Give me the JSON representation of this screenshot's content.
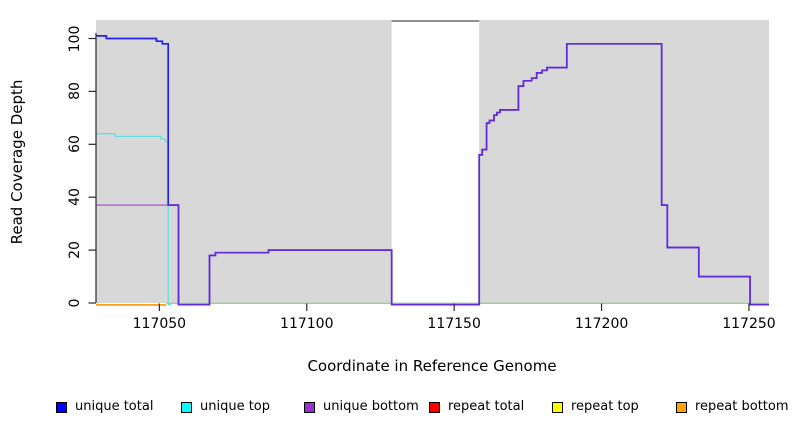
{
  "chart_data": {
    "type": "line",
    "subtype": "step-coverage",
    "title": "",
    "xlabel": "Coordinate in Reference Genome",
    "ylabel": "Read Coverage Depth",
    "xlim": [
      117028.5,
      117256.8
    ],
    "ylim": [
      0,
      107
    ],
    "xticks": [
      117050,
      117100,
      117150,
      117200,
      117250
    ],
    "yticks": [
      0,
      20,
      40,
      60,
      80,
      100
    ],
    "grid": false,
    "plot_bg_color": "#d8d8d8",
    "gap_region": {
      "start": 117128.8,
      "end": 117158.5,
      "fill": "#ffffff",
      "border_top": "#8f8f8f"
    },
    "series": [
      {
        "name": "zero-baseline",
        "in_legend": false,
        "color": "#8fd48f",
        "width": 1.2,
        "points": [
          [
            117052.3,
            0
          ],
          [
            117256.8,
            0
          ]
        ]
      },
      {
        "name": "repeat total",
        "in_legend": true,
        "color": "#ee0000",
        "width": 1.5,
        "points": []
      },
      {
        "name": "repeat top",
        "in_legend": true,
        "color": "#ffff00",
        "width": 1.5,
        "points": []
      },
      {
        "name": "repeat bottom",
        "in_legend": true,
        "color": "#ff9500",
        "width": 1.6,
        "points": [
          [
            117028.5,
            0
          ],
          [
            117052.3,
            0
          ]
        ]
      },
      {
        "name": "unique top",
        "in_legend": true,
        "color": "#63dfe4",
        "width": 1.3,
        "points": [
          [
            117028.5,
            64
          ],
          [
            117035,
            63
          ],
          [
            117050.5,
            62
          ],
          [
            117052,
            61
          ],
          [
            117053,
            0
          ],
          [
            117054,
            0
          ]
        ]
      },
      {
        "name": "unique total",
        "in_legend": true,
        "color": "#2222f0",
        "width": 1.7,
        "points": [
          [
            117028.5,
            101
          ],
          [
            117032,
            100
          ],
          [
            117049,
            99
          ],
          [
            117051,
            98
          ],
          [
            117053,
            37
          ],
          [
            117056.5,
            0
          ],
          [
            117067,
            18
          ],
          [
            117069,
            19
          ],
          [
            117087,
            20
          ],
          [
            117128.8,
            0
          ],
          [
            117158.5,
            56
          ],
          [
            117159.5,
            58
          ],
          [
            117161,
            68
          ],
          [
            117162,
            69
          ],
          [
            117163.5,
            71
          ],
          [
            117164.5,
            72
          ],
          [
            117165.5,
            73
          ],
          [
            117171.8,
            82
          ],
          [
            117173.5,
            84
          ],
          [
            117176.3,
            85
          ],
          [
            117178,
            87
          ],
          [
            117179.8,
            88
          ],
          [
            117181.5,
            89
          ],
          [
            117188.2,
            98
          ],
          [
            117220.4,
            37
          ],
          [
            117222.3,
            21
          ],
          [
            117233,
            10
          ],
          [
            117250.4,
            0
          ],
          [
            117256.8,
            0
          ]
        ]
      },
      {
        "name": "unique bottom",
        "in_legend": true,
        "color": "#9932cc",
        "width": 1.7,
        "opacity": 0.55,
        "points": [
          [
            117028.5,
            37
          ],
          [
            117056.5,
            0
          ],
          [
            117067,
            18
          ],
          [
            117069,
            19
          ],
          [
            117087,
            20
          ],
          [
            117128.8,
            0
          ],
          [
            117158.5,
            56
          ],
          [
            117159.5,
            58
          ],
          [
            117161,
            68
          ],
          [
            117162,
            69
          ],
          [
            117163.5,
            71
          ],
          [
            117164.5,
            72
          ],
          [
            117165.5,
            73
          ],
          [
            117171.8,
            82
          ],
          [
            117173.5,
            84
          ],
          [
            117176.3,
            85
          ],
          [
            117178,
            87
          ],
          [
            117179.8,
            88
          ],
          [
            117181.5,
            89
          ],
          [
            117188.2,
            98
          ],
          [
            117220.4,
            37
          ],
          [
            117222.3,
            21
          ],
          [
            117233,
            10
          ],
          [
            117250.4,
            0
          ],
          [
            117256.8,
            0
          ]
        ]
      }
    ],
    "legend": {
      "position": "bottom",
      "items": [
        {
          "label": "unique total",
          "color": "#0000ff"
        },
        {
          "label": "unique top",
          "color": "#00ffff"
        },
        {
          "label": "unique bottom",
          "color": "#9932cc"
        },
        {
          "label": "repeat total",
          "color": "#ff0000"
        },
        {
          "label": "repeat top",
          "color": "#ffff00"
        },
        {
          "label": "repeat bottom",
          "color": "#ffa500"
        }
      ]
    },
    "xtick_labels": [
      "117050",
      "117100",
      "117150",
      "117200",
      "117250"
    ],
    "ytick_labels": [
      "0",
      "20",
      "40",
      "60",
      "80",
      "100"
    ]
  }
}
